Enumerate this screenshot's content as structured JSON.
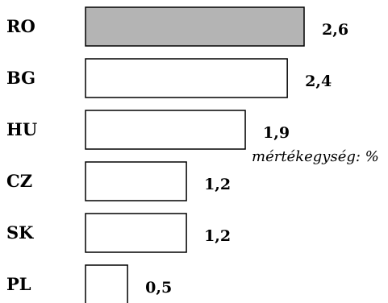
{
  "chart_data": {
    "type": "bar",
    "orientation": "horizontal",
    "categories": [
      "RO",
      "BG",
      "HU",
      "CZ",
      "SK",
      "PL"
    ],
    "values": [
      2.6,
      2.4,
      1.9,
      1.2,
      1.2,
      0.5
    ],
    "value_labels": [
      "2,6",
      "2,4",
      "1,9",
      "1,2",
      "1,2",
      "0,5"
    ],
    "unit_note": "mértékegység: %",
    "highlight_category": "RO",
    "colors": {
      "highlight": "#b4b4b4",
      "default": "#ffffff",
      "stroke": "#000000"
    },
    "xlim": [
      0,
      2.6
    ],
    "grid": false,
    "legend": "none"
  }
}
